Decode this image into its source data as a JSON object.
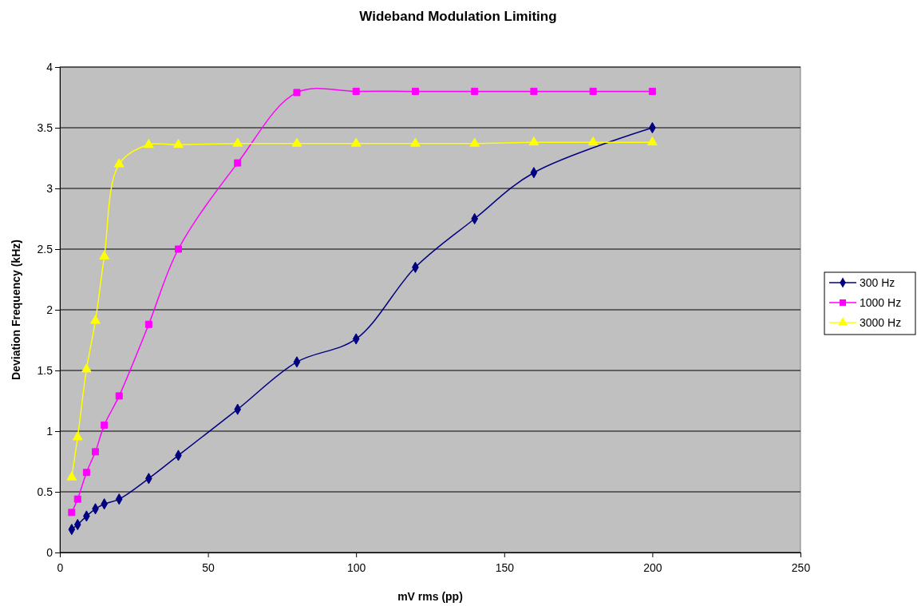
{
  "chart_data": {
    "type": "line",
    "title": "Wideband Modulation Limiting",
    "xlabel": "mV rms (pp)",
    "ylabel": "Deviation Frequency (kHz)",
    "xlim": [
      0,
      250
    ],
    "xticks": [
      0,
      50,
      100,
      150,
      200,
      250
    ],
    "ylim": [
      0,
      4
    ],
    "yticks": [
      0,
      0.5,
      1,
      1.5,
      2,
      2.5,
      3,
      3.5,
      4
    ],
    "grid": "y",
    "legend": "right",
    "line_style": "solid",
    "series": [
      {
        "name": "300 Hz",
        "color": "#000080",
        "marker": "diamond",
        "x": [
          4,
          6,
          9,
          12,
          15,
          20,
          30,
          40,
          60,
          80,
          100,
          120,
          140,
          160,
          200
        ],
        "values": [
          0.19,
          0.23,
          0.3,
          0.36,
          0.4,
          0.44,
          0.61,
          0.8,
          1.18,
          1.57,
          1.76,
          2.35,
          2.75,
          3.13,
          3.5
        ]
      },
      {
        "name": "1000 Hz",
        "color": "#ff00ff",
        "marker": "square",
        "x": [
          4,
          6,
          9,
          12,
          15,
          20,
          30,
          40,
          60,
          80,
          100,
          120,
          140,
          160,
          180,
          200
        ],
        "values": [
          0.33,
          0.44,
          0.66,
          0.83,
          1.05,
          1.29,
          1.88,
          2.5,
          3.21,
          3.79,
          3.8,
          3.8,
          3.8,
          3.8,
          3.8,
          3.8
        ]
      },
      {
        "name": "3000 Hz",
        "color": "#ffff00",
        "marker": "triangle",
        "x": [
          4,
          6,
          9,
          12,
          15,
          20,
          30,
          40,
          60,
          80,
          100,
          120,
          140,
          160,
          180,
          200
        ],
        "values": [
          0.62,
          0.95,
          1.51,
          1.91,
          2.44,
          3.2,
          3.36,
          3.36,
          3.37,
          3.37,
          3.37,
          3.37,
          3.37,
          3.38,
          3.38,
          3.38
        ]
      }
    ]
  }
}
